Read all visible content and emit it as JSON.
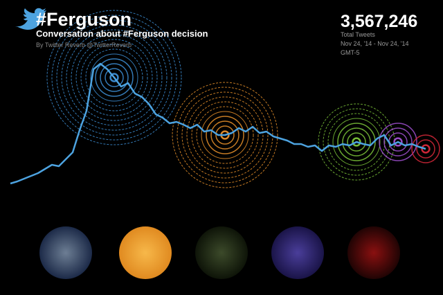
{
  "chart_data": {
    "type": "line",
    "title": "#Ferguson",
    "subtitle": "Conversation about #Ferguson decision",
    "byline": "By Twitter Reverb @TwitterReverb",
    "total": "3,567,246",
    "total_label": "Total Tweets",
    "date_range": "Nov 24, '14 - Nov 24, '14",
    "timezone": "GMT-5",
    "color": "#4da3e0",
    "values": [
      5,
      8,
      12,
      16,
      20,
      26,
      32,
      30,
      40,
      50,
      82,
      110,
      170,
      178,
      170,
      158,
      145,
      150,
      135,
      130,
      120,
      105,
      100,
      92,
      94,
      90,
      85,
      90,
      80,
      82,
      75,
      75,
      78,
      85,
      80,
      87,
      78,
      80,
      73,
      70,
      67,
      62,
      62,
      58,
      60,
      52,
      60,
      58,
      62,
      60,
      65,
      62,
      60,
      70,
      75,
      60,
      65,
      60,
      62,
      58,
      55
    ],
    "highlights": [
      {
        "point": 15,
        "color": "#3d8fd6"
      },
      {
        "point": 31,
        "color": "#e8902a"
      },
      {
        "point": 50,
        "color": "#7cc63a"
      },
      {
        "point": 56,
        "color": "#a050d0"
      },
      {
        "point": 60,
        "color": "#d8283a"
      }
    ]
  }
}
